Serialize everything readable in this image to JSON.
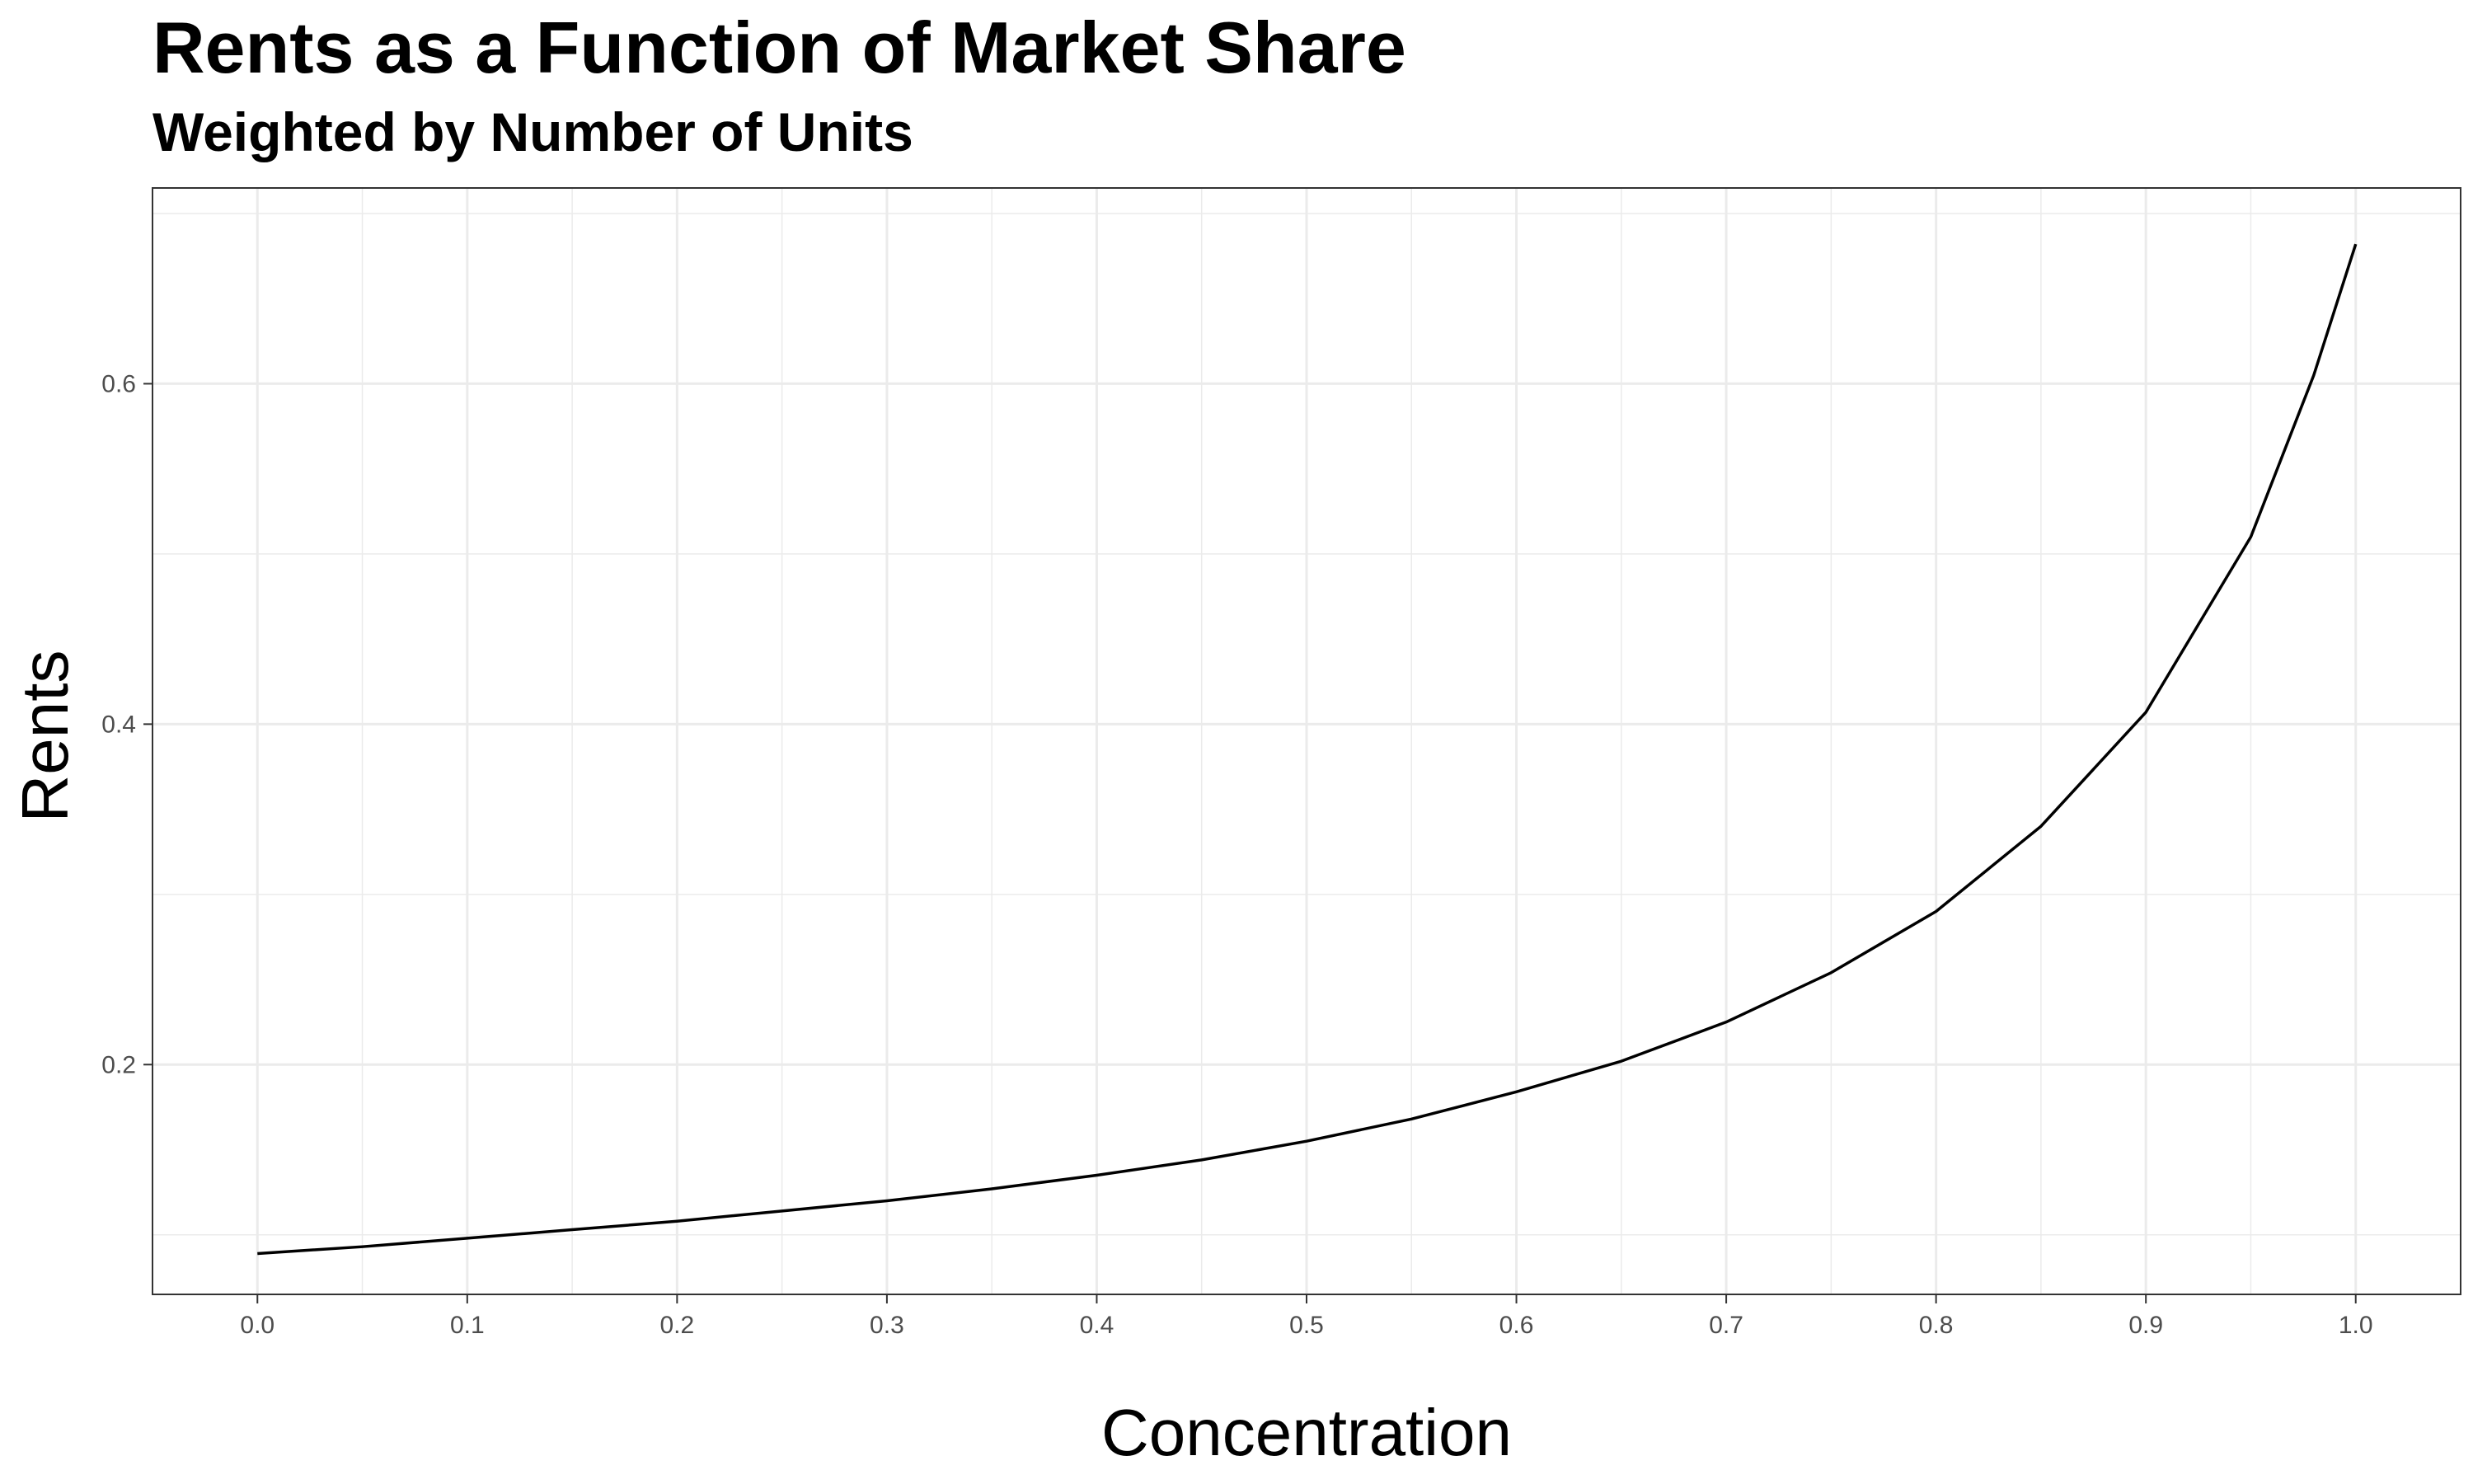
{
  "chart_data": {
    "type": "line",
    "title": "Rents as a Function of Market Share",
    "subtitle": "Weighted by Number of Units",
    "xlabel": "Concentration",
    "ylabel": "Rents",
    "xlim": [
      -0.05,
      1.05
    ],
    "ylim": [
      0.065,
      0.715
    ],
    "x_ticks": [
      0.0,
      0.1,
      0.2,
      0.3,
      0.4,
      0.5,
      0.6,
      0.7,
      0.8,
      0.9,
      1.0
    ],
    "x_tick_labels": [
      "0.0",
      "0.1",
      "0.2",
      "0.3",
      "0.4",
      "0.5",
      "0.6",
      "0.7",
      "0.8",
      "0.9",
      "1.0"
    ],
    "y_ticks": [
      0.2,
      0.4,
      0.6
    ],
    "y_tick_labels": [
      "0.2",
      "0.4",
      "0.6"
    ],
    "grid": true,
    "legend": "none",
    "series": [
      {
        "color": "#000000",
        "x": [
          0.0,
          0.05,
          0.1,
          0.15,
          0.2,
          0.25,
          0.3,
          0.35,
          0.4,
          0.45,
          0.5,
          0.55,
          0.6,
          0.65,
          0.7,
          0.75,
          0.8,
          0.85,
          0.9,
          0.95,
          0.98,
          1.0
        ],
        "y": [
          0.089,
          0.093,
          0.098,
          0.103,
          0.108,
          0.114,
          0.12,
          0.127,
          0.135,
          0.144,
          0.155,
          0.168,
          0.184,
          0.202,
          0.225,
          0.254,
          0.29,
          0.34,
          0.407,
          0.51,
          0.605,
          0.682
        ]
      }
    ]
  }
}
